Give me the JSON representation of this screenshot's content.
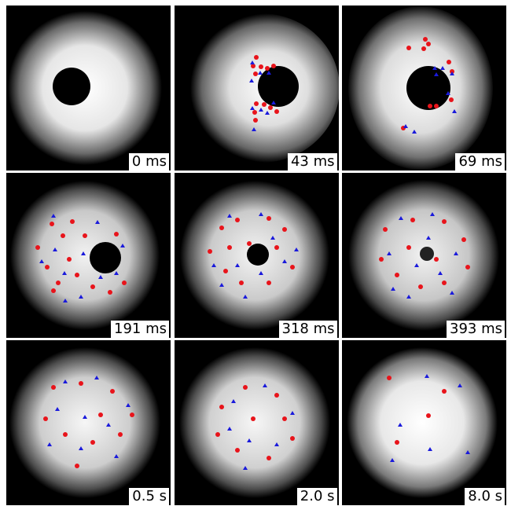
{
  "figure": {
    "panels": [
      {
        "label": "0 ms",
        "stage": "hole-smooth"
      },
      {
        "label": "43 ms",
        "stage": "hole-shifted-vortices-edge"
      },
      {
        "label": "69 ms",
        "stage": "hole-vortices-spreading"
      },
      {
        "label": "191 ms",
        "stage": "turbulent-hole"
      },
      {
        "label": "318 ms",
        "stage": "turbulent-small-hole"
      },
      {
        "label": "393 ms",
        "stage": "turbulent-hole-closing"
      },
      {
        "label": "0.5 s",
        "stage": "turbulent-filled"
      },
      {
        "label": "2.0 s",
        "stage": "turbulent-filled-decaying"
      },
      {
        "label": "8.0 s",
        "stage": "smooth-few-vortices"
      }
    ],
    "marker_colors": {
      "positive": "#e8141b",
      "negative": "#1a1adb"
    },
    "marker_shapes": {
      "positive": "circle",
      "negative": "triangle"
    },
    "background": "#000000"
  }
}
